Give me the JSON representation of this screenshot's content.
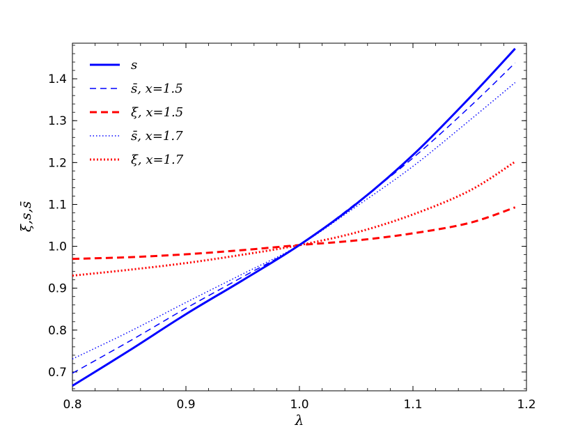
{
  "chart_data": {
    "type": "line",
    "title": "",
    "xlabel": "λ",
    "ylabel": "ξ,s,s̄",
    "xlim": [
      0.8,
      1.2
    ],
    "ylim": [
      0.655,
      1.485
    ],
    "xticks": [
      0.8,
      0.9,
      1.0,
      1.1,
      1.2
    ],
    "xtick_labels": [
      "0.8",
      "0.9",
      "1.0",
      "1.1",
      "1.2"
    ],
    "yticks": [
      0.7,
      0.8,
      0.9,
      1.0,
      1.1,
      1.2,
      1.3,
      1.4
    ],
    "ytick_labels": [
      "0.7",
      "0.8",
      "0.9",
      "1.0",
      "1.1",
      "1.2",
      "1.3",
      "1.4"
    ],
    "grid": false,
    "legend_position": "top-left",
    "x": [
      0.8,
      0.85,
      0.9,
      0.95,
      1.0,
      1.05,
      1.1,
      1.15,
      1.19
    ],
    "series": [
      {
        "name": "s",
        "style": "solid",
        "color": "#0000ff",
        "width": 3.0,
        "values": [
          0.667,
          0.751,
          0.838,
          0.919,
          1.003,
          1.101,
          1.218,
          1.355,
          1.472
        ]
      },
      {
        "name": "s̄, x=1.5",
        "style": "dashed-thin",
        "color": "#0000ff",
        "width": 1.5,
        "values": [
          0.697,
          0.773,
          0.852,
          0.927,
          1.003,
          1.103,
          1.211,
          1.333,
          1.438
        ]
      },
      {
        "name": "ξ, x=1.5",
        "style": "dashed-thick",
        "color": "#ff0000",
        "width": 3.0,
        "values": [
          0.97,
          0.974,
          0.981,
          0.991,
          1.003,
          1.014,
          1.031,
          1.056,
          1.093
        ]
      },
      {
        "name": "s̄, x=1.7",
        "style": "dotted-thin",
        "color": "#0000ff",
        "width": 1.5,
        "values": [
          0.731,
          0.796,
          0.866,
          0.934,
          1.003,
          1.095,
          1.191,
          1.301,
          1.391
        ]
      },
      {
        "name": "ξ, x=1.7",
        "style": "dotted-thick",
        "color": "#ff0000",
        "width": 3.0,
        "values": [
          0.93,
          0.944,
          0.96,
          0.98,
          1.003,
          1.033,
          1.076,
          1.133,
          1.202
        ]
      }
    ]
  }
}
